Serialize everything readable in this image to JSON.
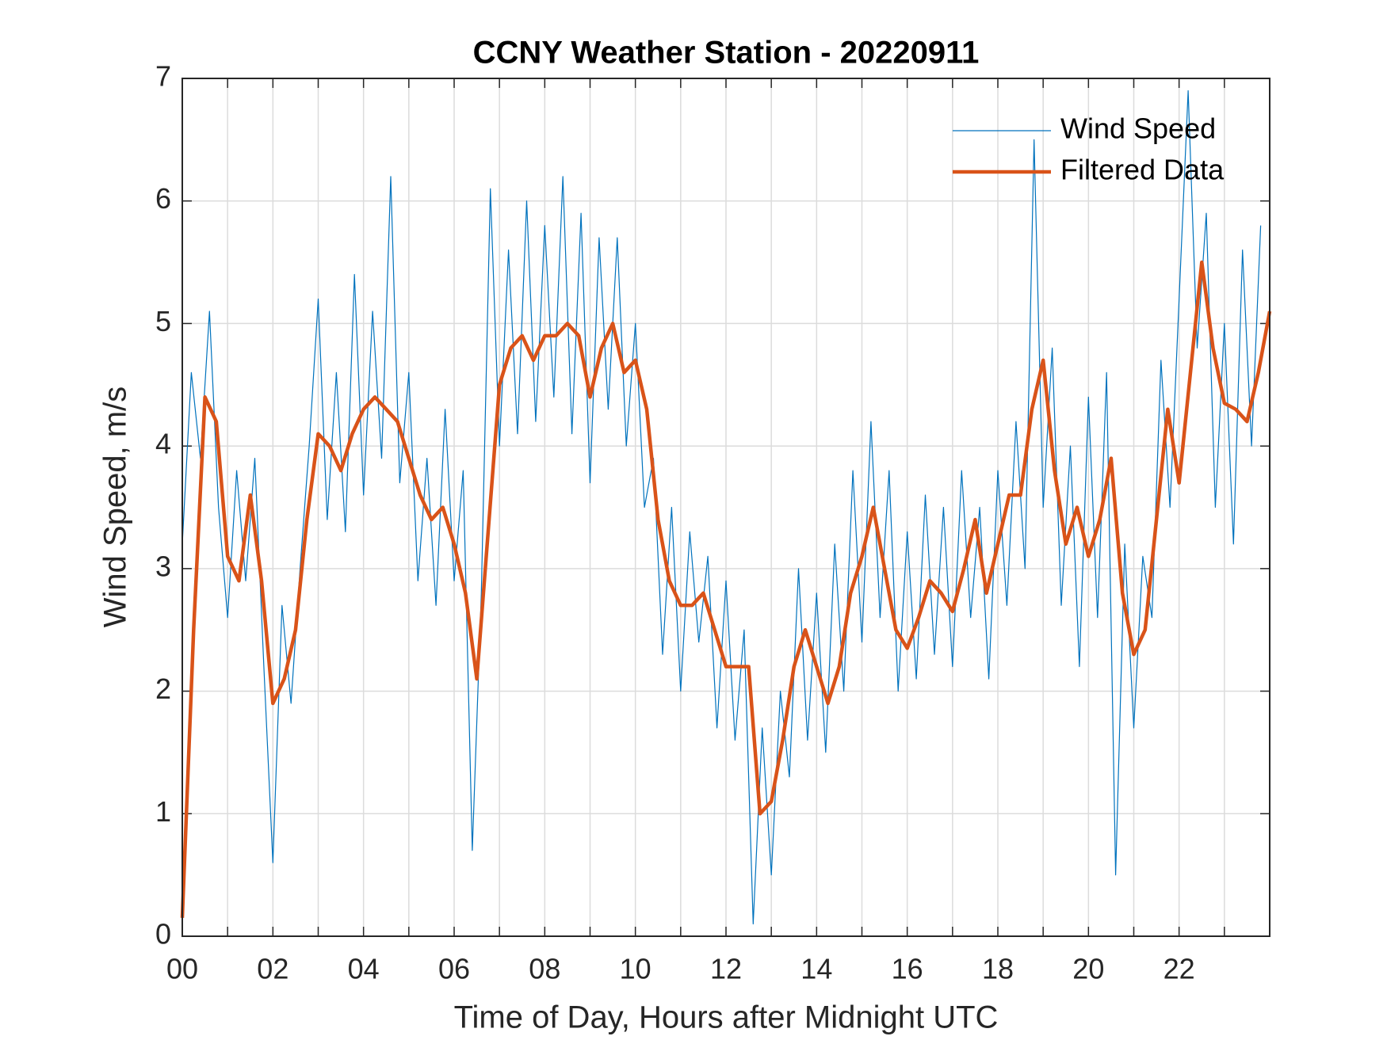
{
  "chart_data": {
    "type": "line",
    "title": "CCNY Weather Station - 20220911",
    "xlabel": "Time of Day, Hours after Midnight UTC",
    "ylabel": "Wind Speed, m/s",
    "xlim": [
      0,
      24
    ],
    "ylim": [
      0,
      7
    ],
    "xticks": [
      {
        "value": 0,
        "label": "00"
      },
      {
        "value": 2,
        "label": "02"
      },
      {
        "value": 4,
        "label": "04"
      },
      {
        "value": 6,
        "label": "06"
      },
      {
        "value": 8,
        "label": "08"
      },
      10,
      12,
      14,
      16,
      18,
      20,
      22
    ],
    "xminorticks": [
      1,
      3,
      5,
      7,
      9,
      11,
      13,
      15,
      17,
      19,
      21,
      23
    ],
    "yticks": [
      0,
      1,
      2,
      3,
      4,
      5,
      6,
      7
    ],
    "grid": true,
    "legend": "northeast",
    "series": [
      {
        "name": "Wind Speed",
        "color": "#0072bd",
        "width": 1.2,
        "x": [
          0,
          0.2,
          0.4,
          0.6,
          0.8,
          1,
          1.2,
          1.4,
          1.6,
          1.8,
          2,
          2.2,
          2.4,
          2.6,
          2.8,
          3,
          3.2,
          3.4,
          3.6,
          3.8,
          4,
          4.2,
          4.4,
          4.6,
          4.8,
          5,
          5.2,
          5.4,
          5.6,
          5.8,
          6,
          6.2,
          6.4,
          6.6,
          6.8,
          7,
          7.2,
          7.4,
          7.6,
          7.8,
          8,
          8.2,
          8.4,
          8.6,
          8.8,
          9,
          9.2,
          9.4,
          9.6,
          9.8,
          10,
          10.2,
          10.4,
          10.6,
          10.8,
          11,
          11.2,
          11.4,
          11.6,
          11.8,
          12,
          12.2,
          12.4,
          12.6,
          12.8,
          13,
          13.2,
          13.4,
          13.6,
          13.8,
          14,
          14.2,
          14.4,
          14.6,
          14.8,
          15,
          15.2,
          15.4,
          15.6,
          15.8,
          16,
          16.2,
          16.4,
          16.6,
          16.8,
          17,
          17.2,
          17.4,
          17.6,
          17.8,
          18,
          18.2,
          18.4,
          18.6,
          18.8,
          19,
          19.2,
          19.4,
          19.6,
          19.8,
          20,
          20.2,
          20.4,
          20.6,
          20.8,
          21,
          21.2,
          21.4,
          21.6,
          21.8,
          22,
          22.2,
          22.4,
          22.6,
          22.8,
          23,
          23.2,
          23.4,
          23.6,
          23.8
        ],
        "values": [
          3.2,
          4.6,
          3.9,
          5.1,
          3.5,
          2.6,
          3.8,
          2.9,
          3.9,
          2.2,
          0.6,
          2.7,
          1.9,
          3.0,
          4.0,
          5.2,
          3.4,
          4.6,
          3.3,
          5.4,
          3.6,
          5.1,
          3.9,
          6.2,
          3.7,
          4.6,
          2.9,
          3.9,
          2.7,
          4.3,
          2.9,
          3.8,
          0.7,
          2.8,
          6.1,
          4.0,
          5.6,
          4.1,
          6.0,
          4.2,
          5.8,
          4.4,
          6.2,
          4.1,
          5.9,
          3.7,
          5.7,
          4.3,
          5.7,
          4.0,
          5.0,
          3.5,
          3.9,
          2.3,
          3.5,
          2.0,
          3.3,
          2.4,
          3.1,
          1.7,
          2.9,
          1.6,
          2.5,
          0.1,
          1.7,
          0.5,
          2.0,
          1.3,
          3.0,
          1.6,
          2.8,
          1.5,
          3.2,
          2.0,
          3.8,
          2.4,
          4.2,
          2.6,
          3.8,
          2.0,
          3.3,
          2.1,
          3.6,
          2.3,
          3.5,
          2.2,
          3.8,
          2.6,
          3.5,
          2.1,
          3.8,
          2.7,
          4.2,
          3.0,
          6.5,
          3.5,
          4.8,
          2.7,
          4.0,
          2.2,
          4.4,
          2.6,
          4.6,
          0.5,
          3.2,
          1.7,
          3.1,
          2.6,
          4.7,
          3.5,
          5.2,
          6.9,
          4.8,
          5.9,
          3.5,
          5.0,
          3.2,
          5.6,
          4.0,
          5.8
        ]
      },
      {
        "name": "Filtered Data",
        "color": "#d95319",
        "width": 4.5,
        "x": [
          0,
          0.25,
          0.5,
          0.75,
          1,
          1.25,
          1.5,
          1.75,
          2,
          2.25,
          2.5,
          2.75,
          3,
          3.25,
          3.5,
          3.75,
          4,
          4.25,
          4.5,
          4.75,
          5,
          5.25,
          5.5,
          5.75,
          6,
          6.25,
          6.5,
          6.75,
          7,
          7.25,
          7.5,
          7.75,
          8,
          8.25,
          8.5,
          8.75,
          9,
          9.25,
          9.5,
          9.75,
          10,
          10.25,
          10.5,
          10.75,
          11,
          11.25,
          11.5,
          11.75,
          12,
          12.25,
          12.5,
          12.75,
          13,
          13.25,
          13.5,
          13.75,
          14,
          14.25,
          14.5,
          14.75,
          15,
          15.25,
          15.5,
          15.75,
          16,
          16.25,
          16.5,
          16.75,
          17,
          17.25,
          17.5,
          17.75,
          18,
          18.25,
          18.5,
          18.75,
          19,
          19.25,
          19.5,
          19.75,
          20,
          20.25,
          20.5,
          20.75,
          21,
          21.25,
          21.5,
          21.75,
          22,
          22.25,
          22.5,
          22.75,
          23,
          23.25,
          23.5,
          23.75,
          24
        ],
        "values": [
          0.15,
          2.5,
          4.4,
          4.2,
          3.1,
          2.9,
          3.6,
          2.9,
          1.9,
          2.1,
          2.5,
          3.4,
          4.1,
          4.0,
          3.8,
          4.1,
          4.3,
          4.4,
          4.3,
          4.2,
          3.9,
          3.6,
          3.4,
          3.5,
          3.2,
          2.8,
          2.1,
          3.3,
          4.5,
          4.8,
          4.9,
          4.7,
          4.9,
          4.9,
          5.0,
          4.9,
          4.4,
          4.8,
          5.0,
          4.6,
          4.7,
          4.3,
          3.4,
          2.9,
          2.7,
          2.7,
          2.8,
          2.5,
          2.2,
          2.2,
          2.2,
          1.0,
          1.1,
          1.6,
          2.2,
          2.5,
          2.2,
          1.9,
          2.2,
          2.8,
          3.1,
          3.5,
          3.0,
          2.5,
          2.35,
          2.6,
          2.9,
          2.8,
          2.65,
          3.0,
          3.4,
          2.8,
          3.2,
          3.6,
          3.6,
          4.3,
          4.7,
          3.8,
          3.2,
          3.5,
          3.1,
          3.4,
          3.9,
          2.8,
          2.3,
          2.5,
          3.4,
          4.3,
          3.7,
          4.6,
          5.5,
          4.8,
          4.35,
          4.3,
          4.2,
          4.6,
          5.1
        ]
      }
    ]
  }
}
